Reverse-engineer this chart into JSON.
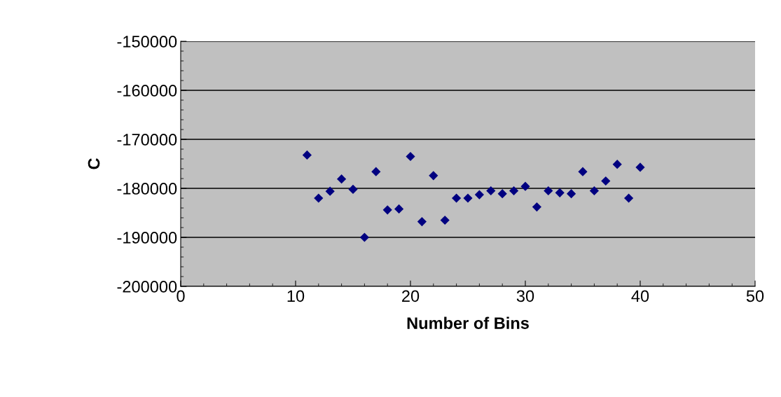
{
  "chart_data": {
    "type": "scatter",
    "xlabel": "Number of Bins",
    "ylabel": "C",
    "x": [
      11,
      12,
      13,
      14,
      15,
      16,
      17,
      18,
      19,
      20,
      21,
      22,
      23,
      24,
      25,
      26,
      27,
      28,
      29,
      30,
      31,
      32,
      33,
      34,
      35,
      36,
      37,
      38,
      39,
      40
    ],
    "series": [
      {
        "color": "#000080",
        "values": [
          -173200,
          -182000,
          -180600,
          -178100,
          -180200,
          -190000,
          -176600,
          -184400,
          -184200,
          -173500,
          -186800,
          -177400,
          -186500,
          -182000,
          -182000,
          -181300,
          -180500,
          -181100,
          -180500,
          -179600,
          -183800,
          -180500,
          -180900,
          -181100,
          -176600,
          -180500,
          -178500,
          -175100,
          -182000,
          -175700
        ]
      }
    ],
    "xlim": [
      0,
      50
    ],
    "xticks": [
      0,
      10,
      20,
      30,
      40,
      50
    ],
    "ylim": [
      -200000,
      -150000
    ],
    "yticks": [
      -200000,
      -190000,
      -180000,
      -170000,
      -160000,
      -150000
    ],
    "grid": "y",
    "marker": "diamond",
    "legend": false
  }
}
